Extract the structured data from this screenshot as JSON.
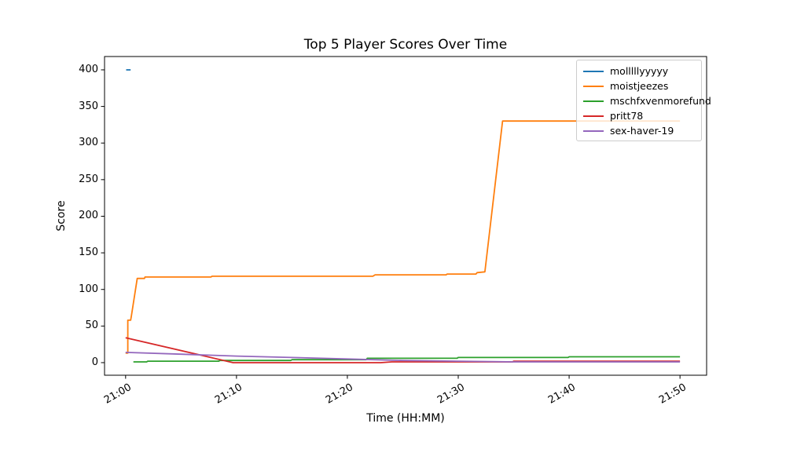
{
  "chart_data": {
    "type": "line",
    "title": "Top 5 Player Scores Over Time",
    "xlabel": "Time (HH:MM)",
    "ylabel": "Score",
    "grid": false,
    "legend_position": "upper right",
    "x_unit": "minutes after 21:00",
    "xlim": [
      -1.9,
      52.4
    ],
    "ylim": [
      -17.2,
      418.2
    ],
    "yticks": [
      0,
      50,
      100,
      150,
      200,
      250,
      300,
      350,
      400
    ],
    "xticks": [
      {
        "minute": 0,
        "label": "21:00"
      },
      {
        "minute": 10,
        "label": "21:10"
      },
      {
        "minute": 20,
        "label": "21:20"
      },
      {
        "minute": 30,
        "label": "21:30"
      },
      {
        "minute": 40,
        "label": "21:40"
      },
      {
        "minute": 50,
        "label": "21:50"
      }
    ],
    "series": [
      {
        "name": "molllllyyyyy",
        "color": "#1f77b4",
        "points": [
          [
            0.05,
            400
          ],
          [
            0.45,
            400
          ]
        ]
      },
      {
        "name": "moistjeezes",
        "color": "#ff7f0e",
        "points": [
          [
            0,
            13
          ],
          [
            0.2,
            13
          ],
          [
            0.2,
            58
          ],
          [
            0.45,
            58
          ],
          [
            0.5,
            62
          ],
          [
            1.05,
            115
          ],
          [
            1.7,
            115
          ],
          [
            1.75,
            117
          ],
          [
            7.7,
            117
          ],
          [
            7.8,
            118
          ],
          [
            22.3,
            118
          ],
          [
            22.5,
            120
          ],
          [
            28.9,
            120
          ],
          [
            29,
            121
          ],
          [
            31.6,
            121
          ],
          [
            31.7,
            123
          ],
          [
            32.4,
            124
          ],
          [
            34,
            330
          ],
          [
            50,
            330
          ]
        ]
      },
      {
        "name": "mschfxvenmorefund",
        "color": "#2ca02c",
        "points": [
          [
            0.7,
            1
          ],
          [
            1.9,
            1
          ],
          [
            2,
            2
          ],
          [
            8.4,
            2
          ],
          [
            8.5,
            3
          ],
          [
            14.9,
            3
          ],
          [
            15,
            4
          ],
          [
            21.7,
            4
          ],
          [
            21.8,
            6
          ],
          [
            29.9,
            6
          ],
          [
            30,
            7
          ],
          [
            39.9,
            7
          ],
          [
            40,
            8
          ],
          [
            50,
            8
          ]
        ]
      },
      {
        "name": "pritt78",
        "color": "#d62728",
        "points": [
          [
            0,
            34
          ],
          [
            9.7,
            0
          ],
          [
            23,
            0
          ],
          [
            24,
            1
          ],
          [
            34.9,
            1
          ],
          [
            35,
            2
          ],
          [
            50,
            2
          ]
        ]
      },
      {
        "name": "sex-haver-19",
        "color": "#9467bd",
        "points": [
          [
            0,
            14
          ],
          [
            5,
            11.5
          ],
          [
            10,
            9
          ],
          [
            15,
            7
          ],
          [
            20,
            5
          ],
          [
            25,
            3
          ],
          [
            30,
            2
          ],
          [
            35,
            1
          ],
          [
            40,
            1
          ],
          [
            50,
            1
          ]
        ]
      }
    ]
  }
}
